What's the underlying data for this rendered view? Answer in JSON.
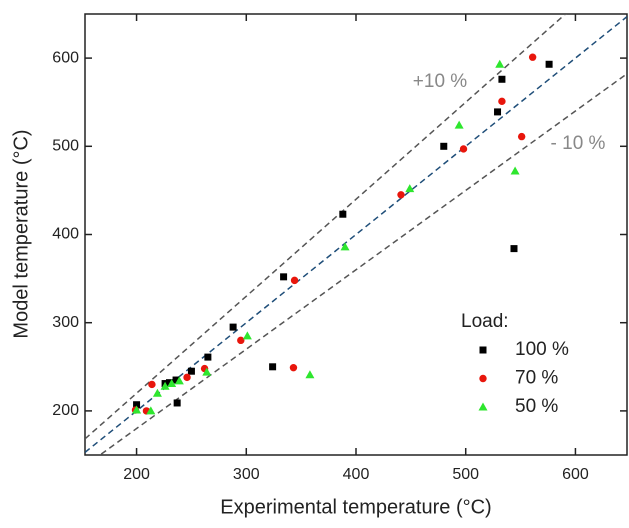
{
  "chart_data": {
    "type": "scatter",
    "x_label": "Experimental temperature (°C)",
    "y_label": "Model temperature (°C)",
    "xlim": [
      153,
      647
    ],
    "ylim": [
      150,
      650
    ],
    "xticks": [
      200,
      300,
      400,
      500,
      600
    ],
    "yticks": [
      200,
      300,
      400,
      500,
      600
    ],
    "legend_title": "Load:",
    "legend": "lower-right",
    "ref_lines": [
      {
        "slope": 1.1,
        "color": "#555555",
        "label": "+10 %"
      },
      {
        "slope": 1,
        "color": "#1f4e79"
      },
      {
        "slope": 0.9,
        "color": "#555555",
        "label": "- 10 %"
      }
    ],
    "series": [
      {
        "name": "100 %",
        "color": "#000000",
        "marker": "square",
        "x": [
          200,
          226,
          230,
          236,
          237,
          250,
          265,
          288,
          324,
          334,
          388,
          480,
          529,
          533,
          544,
          576
        ],
        "values": [
          207,
          231,
          232,
          235,
          209,
          245,
          261,
          295,
          250,
          352,
          423,
          500,
          539,
          576,
          384,
          593
        ]
      },
      {
        "name": "70 %",
        "color": "#e8160c",
        "marker": "circle",
        "x": [
          199,
          209,
          214,
          246,
          262,
          295,
          343,
          344,
          441,
          498,
          533,
          551,
          561
        ],
        "values": [
          201,
          200,
          230,
          238,
          248,
          280,
          249,
          348,
          445,
          497,
          551,
          511,
          601
        ]
      },
      {
        "name": "50 %",
        "color": "#2ee62e",
        "marker": "triangle",
        "x": [
          200,
          213,
          219,
          226,
          232,
          239,
          264,
          301,
          358,
          390,
          449,
          494,
          531,
          545
        ],
        "values": [
          201,
          200,
          220,
          228,
          231,
          234,
          244,
          285,
          241,
          386,
          452,
          524,
          593,
          472
        ]
      }
    ]
  }
}
